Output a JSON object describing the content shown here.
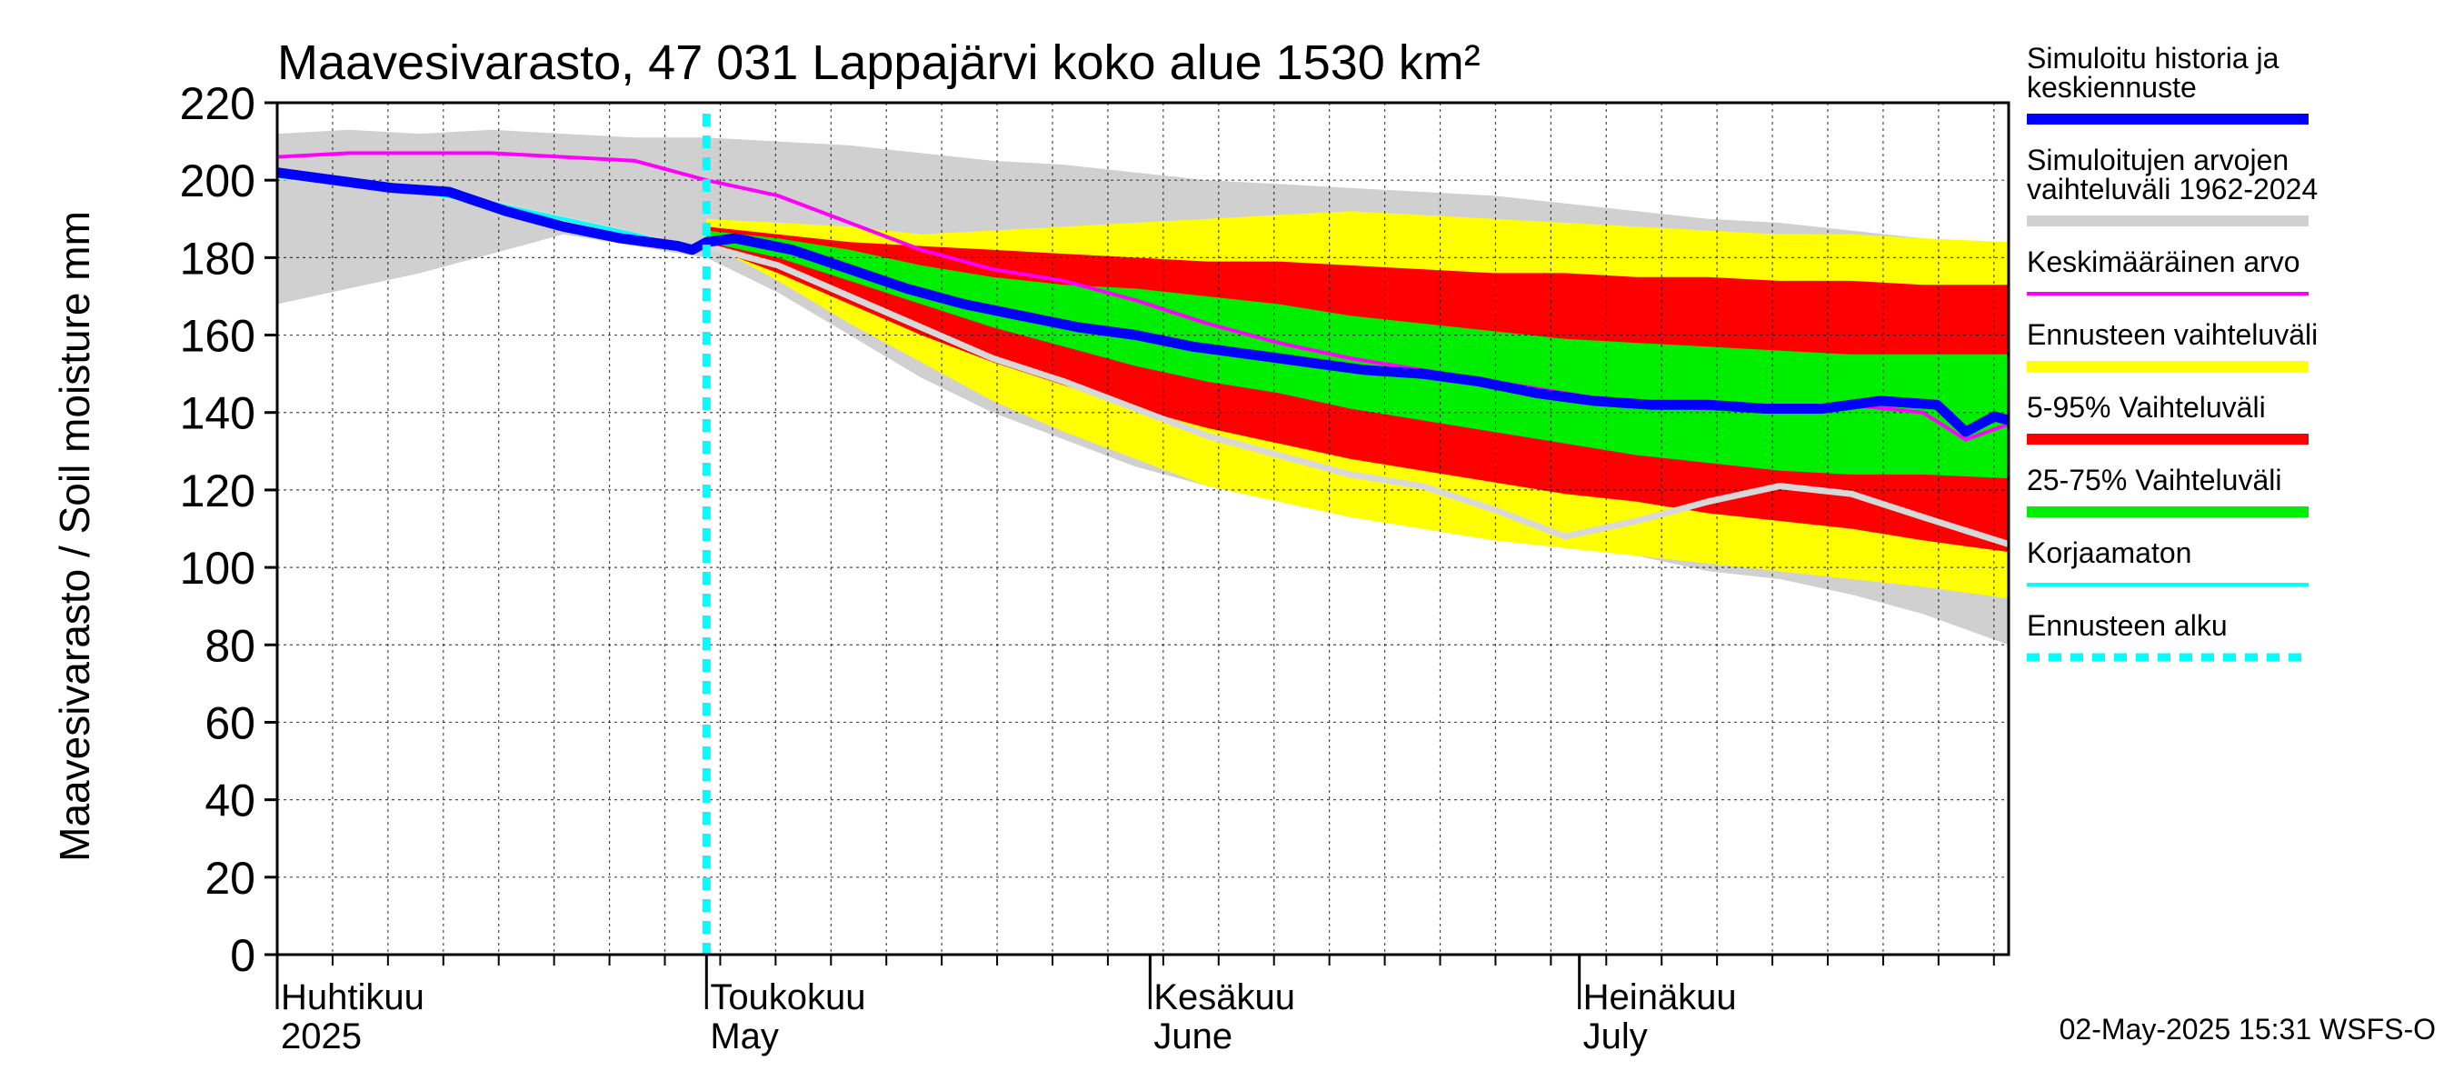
{
  "chart_data": {
    "type": "area",
    "title": "Maavesivarasto, 47 031 Lappajärvi koko alue 1530 km²",
    "ylabel": "Maavesivarasto / Soil moisture   mm",
    "xlabel": "",
    "ylim": [
      0,
      220
    ],
    "yticks": [
      0,
      20,
      40,
      60,
      80,
      100,
      120,
      140,
      160,
      180,
      200,
      220
    ],
    "x_range_days": [
      0,
      121
    ],
    "month_labels": [
      {
        "line1": "Huhtikuu",
        "line2": "2025",
        "day": 0
      },
      {
        "line1": "Toukokuu",
        "line2": "May",
        "day": 30
      },
      {
        "line1": "Kesäkuu",
        "line2": "June",
        "day": 61
      },
      {
        "line1": "Heinäkuu",
        "line2": "July",
        "day": 91
      }
    ],
    "forecast_start_day": 30,
    "grid": true,
    "legend_position": "right",
    "timestamp": "02-May-2025 15:31 WSFS-O",
    "series": {
      "hist_range": {
        "name": "Simuloitujen arvojen vaihteluväli 1962-2024",
        "color": "#d0d0d0",
        "x": [
          0,
          5,
          10,
          15,
          20,
          25,
          30,
          35,
          40,
          45,
          50,
          55,
          60,
          65,
          70,
          75,
          80,
          85,
          90,
          95,
          100,
          105,
          110,
          115,
          121
        ],
        "upper": [
          212,
          213,
          212,
          213,
          212,
          211,
          211,
          210,
          209,
          207,
          205,
          204,
          202,
          200,
          199,
          198,
          197,
          196,
          194,
          192,
          190,
          189,
          187,
          185,
          182
        ],
        "lower": [
          168,
          172,
          176,
          181,
          186,
          183,
          180,
          171,
          160,
          149,
          140,
          133,
          126,
          121,
          118,
          114,
          113,
          110,
          107,
          103,
          99,
          97,
          93,
          88,
          80
        ]
      },
      "ens_range": {
        "name": "Ennusteen vaihteluväli",
        "color": "#ffff00",
        "x": [
          30,
          35,
          40,
          45,
          50,
          55,
          60,
          65,
          70,
          75,
          80,
          85,
          90,
          95,
          100,
          105,
          110,
          115,
          121
        ],
        "upper": [
          190,
          189,
          188,
          186,
          187,
          188,
          189,
          190,
          191,
          192,
          191,
          190,
          189,
          188,
          187,
          186,
          186,
          185,
          184
        ],
        "lower": [
          184,
          174,
          163,
          153,
          143,
          135,
          128,
          121,
          117,
          113,
          110,
          107,
          105,
          103,
          101,
          99,
          97,
          95,
          92
        ]
      },
      "p5_95": {
        "name": "5-95% Vaihteluväli",
        "color": "#ff0000",
        "x": [
          30,
          35,
          40,
          45,
          50,
          55,
          60,
          65,
          70,
          75,
          80,
          85,
          90,
          95,
          100,
          105,
          110,
          115,
          121
        ],
        "upper": [
          188,
          186,
          184,
          183,
          182,
          181,
          180,
          179,
          179,
          178,
          177,
          176,
          176,
          175,
          175,
          174,
          174,
          173,
          173
        ],
        "lower": [
          183,
          176,
          168,
          160,
          153,
          147,
          141,
          136,
          132,
          128,
          125,
          122,
          119,
          117,
          114,
          112,
          110,
          107,
          104
        ]
      },
      "p25_75": {
        "name": "25-75% Vaihteluväli",
        "color": "#00ee00",
        "x": [
          30,
          35,
          40,
          45,
          50,
          55,
          60,
          65,
          70,
          75,
          80,
          85,
          90,
          95,
          100,
          105,
          110,
          115,
          121
        ],
        "upper": [
          187,
          185,
          182,
          178,
          175,
          173,
          172,
          170,
          168,
          165,
          163,
          161,
          159,
          158,
          157,
          156,
          155,
          155,
          155
        ],
        "lower": [
          184,
          180,
          174,
          168,
          162,
          157,
          152,
          148,
          145,
          141,
          138,
          135,
          132,
          129,
          127,
          125,
          124,
          124,
          123
        ]
      },
      "korjaamaton": {
        "name": "Korjaamaton",
        "color": "#00ffff",
        "x": [
          0,
          5,
          10,
          15,
          20,
          25,
          29,
          30,
          35,
          40,
          45,
          50,
          55,
          60,
          65,
          70,
          75,
          80,
          85,
          90,
          95,
          100,
          105,
          110,
          115,
          121
        ],
        "values": [
          201,
          199,
          197,
          194,
          190,
          186,
          182,
          183,
          178,
          170,
          162,
          154,
          148,
          141,
          134,
          129,
          124,
          121,
          115,
          108,
          112,
          117,
          121,
          119,
          113,
          106
        ]
      },
      "mean": {
        "name": "Keskimääräinen arvo",
        "color": "#ff00ff",
        "x": [
          0,
          5,
          10,
          15,
          20,
          25,
          30,
          35,
          40,
          45,
          50,
          55,
          60,
          65,
          70,
          75,
          80,
          85,
          90,
          95,
          100,
          105,
          110,
          115,
          118,
          121
        ],
        "values": [
          206,
          207,
          207,
          207,
          206,
          205,
          200,
          196,
          189,
          182,
          177,
          174,
          169,
          163,
          158,
          154,
          151,
          148,
          145,
          142,
          141,
          141,
          142,
          140,
          133,
          137
        ]
      },
      "history": {
        "name": "Simuloitu historia ja keskiennuste",
        "color": "#0000ff",
        "x": [
          0,
          4,
          8,
          12,
          16,
          20,
          24,
          28,
          29,
          30,
          32,
          36,
          40,
          44,
          48,
          52,
          56,
          60,
          64,
          68,
          72,
          76,
          80,
          84,
          88,
          92,
          96,
          100,
          104,
          108,
          112,
          116,
          118,
          120,
          121
        ],
        "values": [
          202,
          200,
          198,
          197,
          192,
          188,
          185,
          183,
          182,
          184,
          185,
          182,
          177,
          172,
          168,
          165,
          162,
          160,
          157,
          155,
          153,
          151,
          150,
          148,
          145,
          143,
          142,
          142,
          141,
          141,
          143,
          142,
          135,
          139,
          138
        ]
      },
      "forecast_start": {
        "name": "Ennusteen alku",
        "color": "#00ffff"
      }
    }
  },
  "legend": [
    {
      "label": "Simuloitu historia ja keskiennuste",
      "color": "#0000ff",
      "style": "thick"
    },
    {
      "label": "Simuloitujen arvojen vaihteluväli 1962-2024",
      "color": "#d0d0d0",
      "style": "band"
    },
    {
      "label": "Keskimääräinen arvo",
      "color": "#ff00ff",
      "style": "thin"
    },
    {
      "label": "Ennusteen vaihteluväli",
      "color": "#ffff00",
      "style": "band"
    },
    {
      "label": "5-95% Vaihteluväli",
      "color": "#ff0000",
      "style": "band"
    },
    {
      "label": "25-75% Vaihteluväli",
      "color": "#00ee00",
      "style": "band"
    },
    {
      "label": "Korjaamaton",
      "color": "#00ffff",
      "style": "thin"
    },
    {
      "label": "Ennusteen alku",
      "color": "#00ffff",
      "style": "dashed"
    }
  ]
}
